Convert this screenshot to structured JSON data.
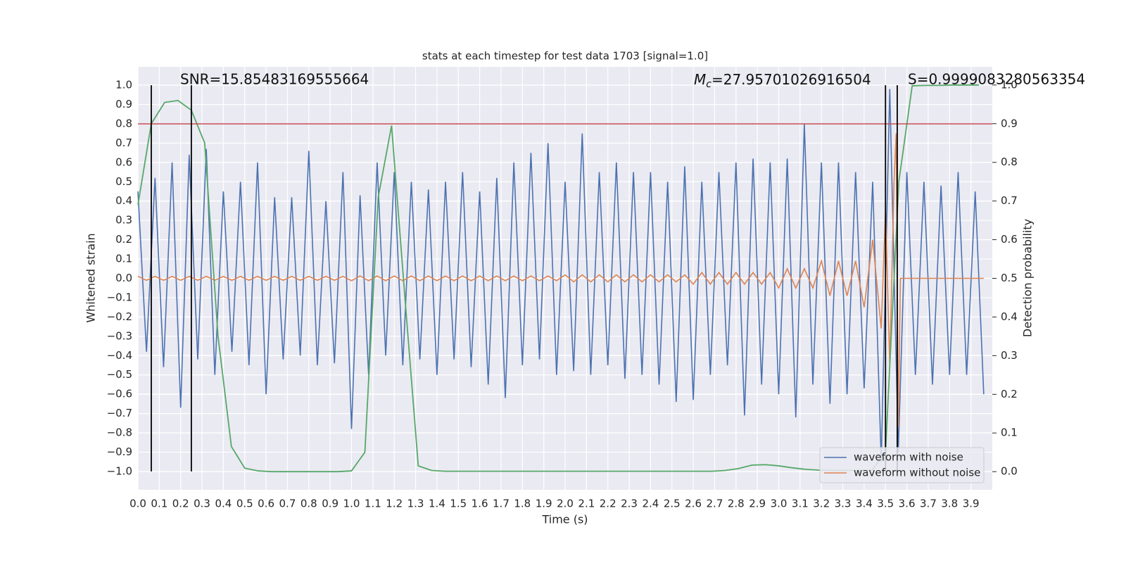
{
  "chart_data": {
    "type": "line",
    "title": "stats at each timestep for test data 1703 [signal=1.0]",
    "x_label": "Time (s)",
    "y_label": "Whitened strain",
    "y2_label": "Detection probability",
    "annotations": {
      "snr": "SNR=15.85483169555664",
      "mc": [
        "M",
        "c",
        "=27.95701026916504"
      ],
      "s": "S=0.9999083280563354"
    },
    "xlim": [
      0,
      4.0
    ],
    "ylim": [
      -1.095,
      1.095
    ],
    "y2lim": [
      -0.047,
      1.047
    ],
    "grid": true,
    "legend": "lower right",
    "xticks": [
      {
        "value": 0,
        "label": "0.0"
      },
      0.1,
      0.2,
      0.3,
      0.4,
      0.5,
      0.6,
      0.7,
      0.8,
      0.9,
      {
        "value": 1,
        "label": "1.0"
      },
      1.1,
      1.2,
      1.3,
      1.4,
      1.5,
      1.6,
      1.7,
      1.8,
      1.9,
      {
        "value": 2,
        "label": "2.0"
      },
      2.1,
      2.2,
      2.3,
      2.4,
      2.5,
      2.6,
      2.7,
      2.8,
      2.9,
      {
        "value": 3,
        "label": "3.0"
      },
      3.1,
      3.2,
      3.3,
      3.4,
      3.5,
      3.6,
      3.7,
      3.8,
      3.9
    ],
    "yticks": [
      {
        "value": -1,
        "label": "−1.0"
      },
      {
        "value": -0.9,
        "label": "−0.9"
      },
      {
        "value": -0.8,
        "label": "−0.8"
      },
      {
        "value": -0.7,
        "label": "−0.7"
      },
      {
        "value": -0.6,
        "label": "−0.6"
      },
      {
        "value": -0.5,
        "label": "−0.5"
      },
      {
        "value": -0.4,
        "label": "−0.4"
      },
      {
        "value": -0.3,
        "label": "−0.3"
      },
      {
        "value": -0.2,
        "label": "−0.2"
      },
      {
        "value": -0.1,
        "label": "−0.1"
      },
      {
        "value": 0,
        "label": "0.0"
      },
      0.1,
      0.2,
      0.3,
      0.4,
      0.5,
      0.6,
      0.7,
      0.8,
      0.9,
      {
        "value": 1,
        "label": "1.0"
      }
    ],
    "y2ticks": [
      {
        "value": 0,
        "label": "0.0"
      },
      0.1,
      0.2,
      0.3,
      0.4,
      0.5,
      0.6,
      0.7,
      0.8,
      0.9,
      {
        "value": 1,
        "label": "1.0"
      }
    ],
    "series": [
      {
        "name": "waveform with noise",
        "color": "#4c72b0",
        "x": [
          0.0,
          0.04,
          0.08,
          0.12,
          0.16,
          0.2,
          0.24,
          0.28,
          0.32,
          0.36,
          0.4,
          0.44,
          0.48,
          0.52,
          0.56,
          0.6,
          0.64,
          0.68,
          0.72,
          0.76,
          0.8,
          0.84,
          0.88,
          0.92,
          0.96,
          1.0,
          1.04,
          1.08,
          1.12,
          1.16,
          1.2,
          1.24,
          1.28,
          1.32,
          1.36,
          1.4,
          1.44,
          1.48,
          1.52,
          1.56,
          1.6,
          1.64,
          1.68,
          1.72,
          1.76,
          1.8,
          1.84,
          1.88,
          1.92,
          1.96,
          2.0,
          2.04,
          2.08,
          2.12,
          2.16,
          2.2,
          2.24,
          2.28,
          2.32,
          2.36,
          2.4,
          2.44,
          2.48,
          2.52,
          2.56,
          2.6,
          2.64,
          2.68,
          2.72,
          2.76,
          2.8,
          2.84,
          2.88,
          2.92,
          2.96,
          3.0,
          3.04,
          3.08,
          3.12,
          3.16,
          3.2,
          3.24,
          3.28,
          3.32,
          3.36,
          3.4,
          3.44,
          3.48,
          3.52,
          3.56,
          3.6,
          3.64,
          3.68,
          3.72,
          3.76,
          3.8,
          3.84,
          3.88,
          3.92,
          3.96
        ],
        "values": [
          0.45,
          -0.38,
          0.52,
          -0.46,
          0.6,
          -0.67,
          0.64,
          -0.42,
          0.67,
          -0.5,
          0.45,
          -0.38,
          0.5,
          -0.45,
          0.6,
          -0.6,
          0.42,
          -0.42,
          0.42,
          -0.4,
          0.66,
          -0.45,
          0.4,
          -0.44,
          0.55,
          -0.78,
          0.43,
          -0.5,
          0.6,
          -0.4,
          0.55,
          -0.45,
          0.5,
          -0.42,
          0.46,
          -0.5,
          0.5,
          -0.42,
          0.55,
          -0.46,
          0.45,
          -0.55,
          0.52,
          -0.62,
          0.6,
          -0.45,
          0.65,
          -0.42,
          0.7,
          -0.5,
          0.5,
          -0.48,
          0.75,
          -0.5,
          0.55,
          -0.45,
          0.6,
          -0.52,
          0.55,
          -0.5,
          0.55,
          -0.55,
          0.5,
          -0.64,
          0.58,
          -0.63,
          0.5,
          -0.5,
          0.55,
          -0.45,
          0.6,
          -0.71,
          0.62,
          -0.55,
          0.6,
          -0.6,
          0.62,
          -0.72,
          0.8,
          -0.55,
          0.6,
          -0.65,
          0.6,
          -0.6,
          0.55,
          -0.57,
          0.5,
          -0.95,
          0.98,
          -0.9,
          0.55,
          -0.5,
          0.5,
          -0.55,
          0.48,
          -0.5,
          0.55,
          -0.5,
          0.45,
          -0.6
        ]
      },
      {
        "name": "waveform without noise",
        "color": "#dd8452",
        "x": [
          0.0,
          0.04,
          0.08,
          0.12,
          0.16,
          0.2,
          0.24,
          0.28,
          0.32,
          0.36,
          0.4,
          0.44,
          0.48,
          0.52,
          0.56,
          0.6,
          0.64,
          0.68,
          0.72,
          0.76,
          0.8,
          0.84,
          0.88,
          0.92,
          0.96,
          1.0,
          1.04,
          1.08,
          1.12,
          1.16,
          1.2,
          1.24,
          1.28,
          1.32,
          1.36,
          1.4,
          1.44,
          1.48,
          1.52,
          1.56,
          1.6,
          1.64,
          1.68,
          1.72,
          1.76,
          1.8,
          1.84,
          1.88,
          1.92,
          1.96,
          2.0,
          2.04,
          2.08,
          2.12,
          2.16,
          2.2,
          2.24,
          2.28,
          2.32,
          2.36,
          2.4,
          2.44,
          2.48,
          2.52,
          2.56,
          2.6,
          2.64,
          2.68,
          2.72,
          2.76,
          2.8,
          2.84,
          2.88,
          2.92,
          2.96,
          3.0,
          3.04,
          3.08,
          3.12,
          3.16,
          3.2,
          3.24,
          3.28,
          3.32,
          3.36,
          3.4,
          3.44,
          3.48,
          3.5,
          3.52,
          3.54,
          3.55,
          3.56,
          3.57,
          3.96
        ],
        "values": [
          0.01,
          -0.01,
          0.01,
          -0.01,
          0.01,
          -0.01,
          0.01,
          -0.01,
          0.01,
          -0.01,
          0.01,
          -0.01,
          0.01,
          -0.01,
          0.01,
          -0.01,
          0.01,
          -0.01,
          0.01,
          -0.01,
          0.01,
          -0.01,
          0.01,
          -0.01,
          0.01,
          -0.012,
          0.012,
          -0.012,
          0.012,
          -0.012,
          0.012,
          -0.012,
          0.012,
          -0.012,
          0.012,
          -0.012,
          0.012,
          -0.012,
          0.012,
          -0.012,
          0.012,
          -0.012,
          0.012,
          -0.012,
          0.012,
          -0.012,
          0.012,
          -0.012,
          0.012,
          -0.012,
          0.018,
          -0.018,
          0.018,
          -0.018,
          0.018,
          -0.018,
          0.018,
          -0.018,
          0.018,
          -0.018,
          0.018,
          -0.018,
          0.018,
          -0.018,
          0.018,
          -0.03,
          0.03,
          -0.03,
          0.03,
          -0.03,
          0.03,
          -0.03,
          0.03,
          -0.03,
          0.03,
          -0.05,
          0.05,
          -0.05,
          0.05,
          -0.05,
          0.09,
          -0.09,
          0.09,
          -0.09,
          0.09,
          -0.15,
          0.2,
          -0.26,
          0.35,
          -0.45,
          0.5,
          0.75,
          -0.77,
          0.0,
          0.0
        ]
      }
    ],
    "probability": {
      "axis": "y2",
      "color": "#55a868",
      "x": [
        0,
        0.0625,
        0.125,
        0.1875,
        0.25,
        0.3125,
        0.375,
        0.4375,
        0.5,
        0.5625,
        0.625,
        0.6875,
        0.75,
        0.8125,
        0.875,
        0.9375,
        1.0,
        1.0625,
        1.125,
        1.1875,
        1.25,
        1.3125,
        1.375,
        1.4375,
        1.5,
        1.5625,
        1.625,
        1.6875,
        1.75,
        1.8125,
        1.875,
        1.9375,
        2.0,
        2.0625,
        2.125,
        2.1875,
        2.25,
        2.3125,
        2.375,
        2.4375,
        2.5,
        2.5625,
        2.625,
        2.6875,
        2.75,
        2.8125,
        2.875,
        2.9375,
        3.0,
        3.0625,
        3.125,
        3.1875,
        3.25,
        3.3125,
        3.375,
        3.4375,
        3.5,
        3.5625,
        3.625,
        3.6875,
        3.75,
        3.8125,
        3.875,
        3.9375
      ],
      "values": [
        0.69,
        0.9,
        0.955,
        0.96,
        0.935,
        0.85,
        0.35,
        0.065,
        0.009,
        0.002,
        0,
        0,
        0,
        0,
        0,
        0,
        0.002,
        0.05,
        0.71,
        0.895,
        0.45,
        0.015,
        0.003,
        0.001,
        0.001,
        0.001,
        0.001,
        0.001,
        0.001,
        0.001,
        0.001,
        0.001,
        0.001,
        0.001,
        0.001,
        0.001,
        0.001,
        0.001,
        0.001,
        0.001,
        0.001,
        0.001,
        0.001,
        0.001,
        0.003,
        0.008,
        0.017,
        0.018,
        0.015,
        0.01,
        0.006,
        0.004,
        0.003,
        0.003,
        0.003,
        0.004,
        0.05,
        0.75,
        0.998,
        0.999,
        0.999,
        1.0,
        1.0,
        1.0
      ]
    },
    "hline": {
      "y": 0.8,
      "color": "#c44e52"
    },
    "vlines": {
      "x": [
        0.0625,
        0.25,
        3.5,
        3.555
      ],
      "ymin": -1.0,
      "ymax": 1.0,
      "color": "#000000"
    }
  }
}
